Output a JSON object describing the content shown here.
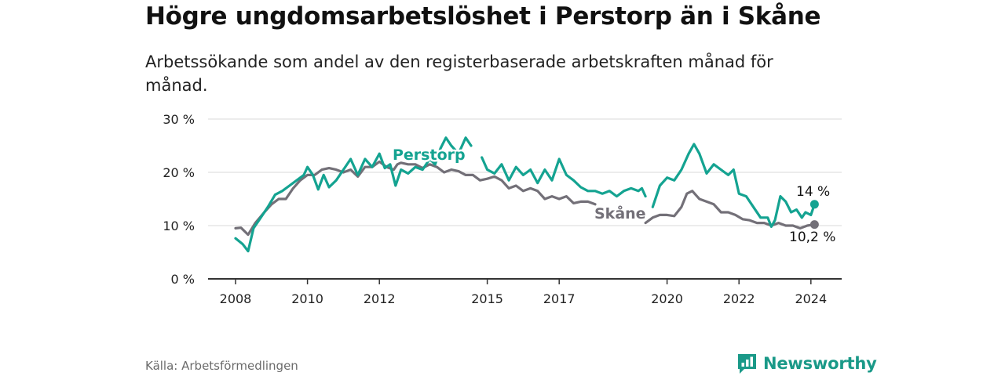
{
  "title": "Högre ungdomsarbetslöshet i Perstorp än i Skåne",
  "subtitle": "Arbetssökande som andel av den registerbaserade arbetskraften månad för månad.",
  "source": "Källa: Arbetsförmedlingen",
  "brand": "Newsworthy",
  "colors": {
    "perstorp": "#14a391",
    "skane": "#737078",
    "grid": "#d9d9d9",
    "axis": "#333333",
    "brand": "#1a9988"
  },
  "chart_data": {
    "type": "line",
    "ylim": [
      0,
      30
    ],
    "xlim": [
      2008.0,
      2024.5
    ],
    "y_ticks": [
      {
        "value": 0,
        "label": "0 %"
      },
      {
        "value": 10,
        "label": "10 %"
      },
      {
        "value": 20,
        "label": "20 %"
      },
      {
        "value": 30,
        "label": "30 %"
      }
    ],
    "x_ticks": [
      {
        "value": 2008,
        "label": "2008"
      },
      {
        "value": 2010,
        "label": "2010"
      },
      {
        "value": 2012,
        "label": "2012"
      },
      {
        "value": 2015,
        "label": "2015"
      },
      {
        "value": 2017,
        "label": "2017"
      },
      {
        "value": 2020,
        "label": "2020"
      },
      {
        "value": 2022,
        "label": "2022"
      },
      {
        "value": 2024,
        "label": "2024"
      }
    ],
    "series": [
      {
        "name": "Perstorp",
        "color": "#14a391",
        "end_label": "14 %",
        "segments": [
          [
            [
              2008.0,
              7.6
            ],
            [
              2008.2,
              6.5
            ],
            [
              2008.35,
              5.2
            ],
            [
              2008.5,
              9.5
            ],
            [
              2008.7,
              11.5
            ],
            [
              2008.9,
              13.5
            ],
            [
              2009.1,
              15.8
            ],
            [
              2009.3,
              16.5
            ],
            [
              2009.5,
              17.5
            ],
            [
              2009.7,
              18.5
            ],
            [
              2009.9,
              19.5
            ],
            [
              2010.0,
              21.0
            ],
            [
              2010.15,
              19.5
            ],
            [
              2010.3,
              16.8
            ],
            [
              2010.45,
              19.5
            ],
            [
              2010.6,
              17.2
            ],
            [
              2010.8,
              18.5
            ],
            [
              2011.0,
              20.5
            ],
            [
              2011.2,
              22.5
            ],
            [
              2011.4,
              19.5
            ],
            [
              2011.6,
              22.5
            ],
            [
              2011.8,
              21.0
            ],
            [
              2012.0,
              23.5
            ],
            [
              2012.15,
              20.8
            ],
            [
              2012.3,
              21.5
            ],
            [
              2012.45,
              17.5
            ],
            [
              2012.6,
              20.5
            ],
            [
              2012.8,
              19.8
            ],
            [
              2013.0,
              21.0
            ],
            [
              2013.2,
              20.5
            ],
            [
              2013.4,
              22.5
            ],
            [
              2013.55,
              21.5
            ],
            [
              2013.7,
              24.5
            ],
            [
              2013.85,
              26.5
            ],
            [
              2014.0,
              25.0
            ],
            [
              2014.2,
              23.5
            ],
            [
              2014.4,
              26.5
            ],
            [
              2014.55,
              25.0
            ]
          ],
          [
            [
              2014.85,
              22.8
            ],
            [
              2015.0,
              20.5
            ],
            [
              2015.2,
              19.8
            ],
            [
              2015.4,
              21.5
            ],
            [
              2015.6,
              18.5
            ],
            [
              2015.8,
              21.0
            ],
            [
              2016.0,
              19.5
            ],
            [
              2016.2,
              20.5
            ],
            [
              2016.4,
              18.0
            ],
            [
              2016.6,
              20.5
            ],
            [
              2016.8,
              18.5
            ],
            [
              2017.0,
              22.5
            ],
            [
              2017.2,
              19.5
            ],
            [
              2017.4,
              18.5
            ],
            [
              2017.6,
              17.2
            ],
            [
              2017.8,
              16.5
            ],
            [
              2018.0,
              16.5
            ],
            [
              2018.2,
              16.0
            ],
            [
              2018.4,
              16.5
            ],
            [
              2018.6,
              15.5
            ],
            [
              2018.8,
              16.5
            ],
            [
              2019.0,
              17.0
            ],
            [
              2019.2,
              16.5
            ],
            [
              2019.3,
              17.0
            ],
            [
              2019.4,
              15.5
            ]
          ],
          [
            [
              2019.6,
              13.5
            ],
            [
              2019.8,
              17.5
            ],
            [
              2020.0,
              19.0
            ],
            [
              2020.2,
              18.5
            ],
            [
              2020.4,
              20.5
            ],
            [
              2020.6,
              23.5
            ],
            [
              2020.75,
              25.3
            ],
            [
              2020.9,
              23.5
            ],
            [
              2021.1,
              19.8
            ],
            [
              2021.3,
              21.5
            ],
            [
              2021.5,
              20.5
            ],
            [
              2021.7,
              19.5
            ],
            [
              2021.85,
              20.5
            ],
            [
              2022.0,
              16.0
            ],
            [
              2022.2,
              15.5
            ],
            [
              2022.4,
              13.5
            ],
            [
              2022.6,
              11.5
            ],
            [
              2022.8,
              11.5
            ],
            [
              2022.9,
              9.8
            ],
            [
              2023.0,
              11.0
            ],
            [
              2023.15,
              15.5
            ],
            [
              2023.3,
              14.5
            ],
            [
              2023.45,
              12.5
            ],
            [
              2023.6,
              13.0
            ],
            [
              2023.75,
              11.5
            ],
            [
              2023.85,
              12.5
            ],
            [
              2024.0,
              12.0
            ],
            [
              2024.1,
              14.0
            ]
          ]
        ]
      },
      {
        "name": "Skåne",
        "color": "#737078",
        "end_label": "10,2 %",
        "segments": [
          [
            [
              2008.0,
              9.5
            ],
            [
              2008.15,
              9.6
            ],
            [
              2008.35,
              8.3
            ],
            [
              2008.55,
              10.5
            ],
            [
              2008.8,
              12.5
            ],
            [
              2009.0,
              14.0
            ],
            [
              2009.2,
              15.0
            ],
            [
              2009.4,
              15.0
            ],
            [
              2009.6,
              17.0
            ],
            [
              2009.8,
              18.5
            ],
            [
              2010.0,
              19.5
            ],
            [
              2010.2,
              19.5
            ],
            [
              2010.4,
              20.5
            ],
            [
              2010.6,
              20.8
            ],
            [
              2010.8,
              20.5
            ],
            [
              2011.0,
              20.0
            ],
            [
              2011.2,
              20.5
            ],
            [
              2011.4,
              19.2
            ],
            [
              2011.6,
              21.0
            ],
            [
              2011.8,
              21.0
            ],
            [
              2012.0,
              22.0
            ],
            [
              2012.2,
              21.0
            ],
            [
              2012.4,
              20.5
            ],
            [
              2012.5,
              21.5
            ],
            [
              2012.6,
              21.8
            ],
            [
              2012.8,
              21.5
            ],
            [
              2013.0,
              21.5
            ],
            [
              2013.2,
              20.8
            ],
            [
              2013.4,
              21.5
            ],
            [
              2013.6,
              21.0
            ],
            [
              2013.8,
              20.0
            ],
            [
              2014.0,
              20.5
            ],
            [
              2014.2,
              20.2
            ],
            [
              2014.4,
              19.5
            ],
            [
              2014.6,
              19.5
            ],
            [
              2014.8,
              18.5
            ],
            [
              2015.0,
              18.8
            ],
            [
              2015.2,
              19.2
            ],
            [
              2015.4,
              18.5
            ],
            [
              2015.6,
              17.0
            ],
            [
              2015.8,
              17.5
            ],
            [
              2016.0,
              16.5
            ],
            [
              2016.2,
              17.0
            ],
            [
              2016.4,
              16.5
            ],
            [
              2016.6,
              15.0
            ],
            [
              2016.8,
              15.5
            ],
            [
              2017.0,
              15.0
            ],
            [
              2017.2,
              15.5
            ],
            [
              2017.4,
              14.2
            ],
            [
              2017.6,
              14.5
            ],
            [
              2017.8,
              14.5
            ],
            [
              2018.0,
              14.0
            ]
          ],
          [
            [
              2019.4,
              10.5
            ],
            [
              2019.6,
              11.5
            ],
            [
              2019.8,
              12.0
            ],
            [
              2020.0,
              12.0
            ],
            [
              2020.2,
              11.8
            ],
            [
              2020.4,
              13.5
            ],
            [
              2020.55,
              16.0
            ],
            [
              2020.7,
              16.5
            ],
            [
              2020.9,
              15.0
            ],
            [
              2021.1,
              14.5
            ],
            [
              2021.3,
              14.0
            ],
            [
              2021.5,
              12.5
            ],
            [
              2021.7,
              12.5
            ],
            [
              2021.9,
              12.0
            ],
            [
              2022.1,
              11.2
            ],
            [
              2022.3,
              11.0
            ],
            [
              2022.5,
              10.5
            ],
            [
              2022.7,
              10.5
            ],
            [
              2022.9,
              10.0
            ],
            [
              2023.1,
              10.5
            ],
            [
              2023.3,
              10.0
            ],
            [
              2023.5,
              10.0
            ],
            [
              2023.7,
              9.5
            ],
            [
              2023.9,
              10.0
            ],
            [
              2024.1,
              10.2
            ]
          ]
        ]
      }
    ]
  }
}
